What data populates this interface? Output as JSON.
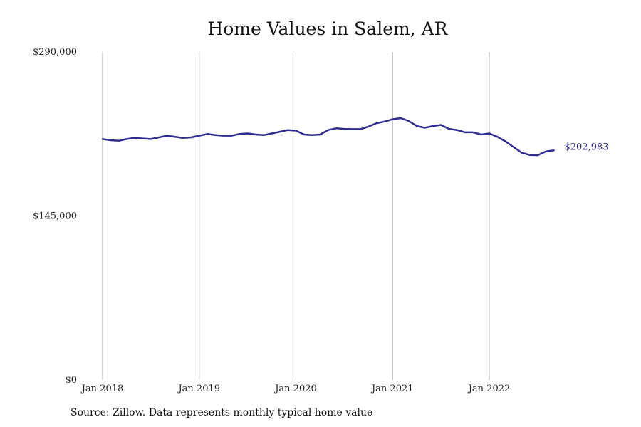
{
  "chart_data": {
    "type": "line",
    "title": "Home Values in Salem, AR",
    "xlabel": "",
    "ylabel": "",
    "ylim": [
      0,
      290000
    ],
    "y_ticks": [
      {
        "value": 290000,
        "label": "$290,000"
      },
      {
        "value": 145000,
        "label": "$145,000"
      },
      {
        "value": 0,
        "label": "$0"
      }
    ],
    "x_ticks": [
      {
        "date": "2018-01",
        "label": "Jan 2018"
      },
      {
        "date": "2019-01",
        "label": "Jan 2019"
      },
      {
        "date": "2020-01",
        "label": "Jan 2020"
      },
      {
        "date": "2021-01",
        "label": "Jan 2021"
      },
      {
        "date": "2022-01",
        "label": "Jan 2022"
      }
    ],
    "grid": "vertical",
    "color": "#2e2d8f",
    "end_label": "$202,983",
    "series": [
      {
        "x": [
          "2018-01",
          "2018-02",
          "2018-03",
          "2018-04",
          "2018-05",
          "2018-06",
          "2018-07",
          "2018-08",
          "2018-09",
          "2018-10",
          "2018-11",
          "2018-12",
          "2019-01",
          "2019-02",
          "2019-03",
          "2019-04",
          "2019-05",
          "2019-06",
          "2019-07",
          "2019-08",
          "2019-09",
          "2019-10",
          "2019-11",
          "2019-12",
          "2020-01",
          "2020-02",
          "2020-03",
          "2020-04",
          "2020-05",
          "2020-06",
          "2020-07",
          "2020-08",
          "2020-09",
          "2020-10",
          "2020-11",
          "2020-12",
          "2021-01",
          "2021-02",
          "2021-03",
          "2021-04",
          "2021-05",
          "2021-06",
          "2021-07",
          "2021-08",
          "2021-09",
          "2021-10",
          "2021-11",
          "2021-12",
          "2022-01",
          "2022-02",
          "2022-03",
          "2022-04",
          "2022-05",
          "2022-06",
          "2022-07",
          "2022-08",
          "2022-09"
        ],
        "values": [
          213000,
          212000,
          211500,
          213000,
          214000,
          213500,
          213000,
          214500,
          216000,
          215000,
          214000,
          214500,
          216000,
          217500,
          216500,
          216000,
          216000,
          217500,
          218000,
          217000,
          216500,
          218000,
          219500,
          221000,
          220500,
          217000,
          216500,
          217000,
          221000,
          222500,
          222000,
          221800,
          221800,
          224000,
          227000,
          228500,
          230500,
          231500,
          229000,
          224500,
          223000,
          224500,
          225500,
          222000,
          221000,
          219000,
          219000,
          217000,
          218000,
          215000,
          211000,
          206000,
          201000,
          199000,
          198700,
          202000,
          202983
        ]
      }
    ]
  },
  "footer": {
    "source": "Source: Zillow. Data represents monthly typical home value"
  }
}
